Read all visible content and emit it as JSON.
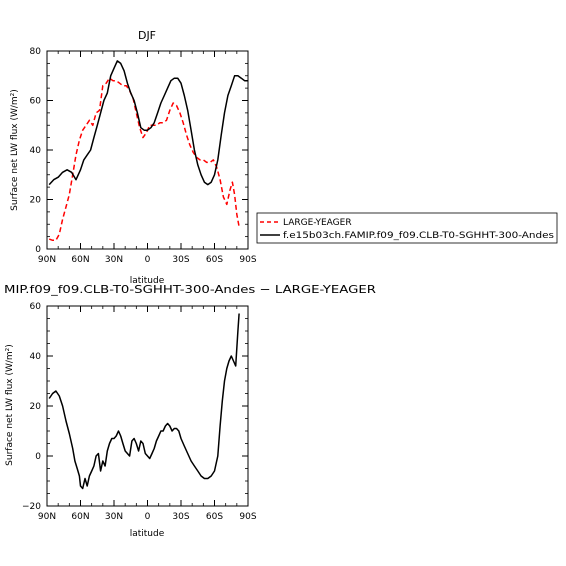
{
  "chart_data": [
    {
      "type": "line",
      "title": "DJF",
      "xlabel": "latitude",
      "ylabel": "Surface net LW flux (W/m²)",
      "xlim": [
        90,
        -90
      ],
      "ylim": [
        0,
        80
      ],
      "x_ticks": [
        90,
        60,
        30,
        0,
        -30,
        -60,
        -90
      ],
      "x_tick_labels": [
        "90N",
        "60N",
        "30N",
        "0",
        "30S",
        "60S",
        "90S"
      ],
      "y_ticks": [
        0,
        20,
        40,
        60,
        80
      ],
      "y_tick_labels": [
        "0",
        "20",
        "40",
        "60",
        "80"
      ],
      "grid": false,
      "legend_position": "right",
      "series": [
        {
          "name": "LARGE-YEAGER",
          "color": "#ff0000",
          "dash": "dashed",
          "x": [
            88,
            85,
            82,
            79,
            76,
            73,
            70,
            67,
            64,
            61,
            58,
            55,
            52,
            49,
            46,
            43,
            40,
            37,
            34,
            31,
            28,
            25,
            22,
            19,
            16,
            13,
            10,
            7,
            4,
            1,
            -2,
            -5,
            -8,
            -11,
            -14,
            -17,
            -20,
            -23,
            -26,
            -29,
            -32,
            -35,
            -38,
            -41,
            -44,
            -47,
            -50,
            -53,
            -56,
            -59,
            -62,
            -65,
            -68,
            -71,
            -74,
            -76,
            -78,
            -80,
            -82
          ],
          "y": [
            4,
            3.5,
            3.5,
            6,
            12,
            17,
            22,
            30,
            38,
            44,
            48,
            50,
            52,
            50,
            55,
            56,
            66,
            67,
            69,
            68,
            68,
            67,
            66,
            66,
            64,
            61,
            55,
            49,
            45,
            47,
            50,
            50,
            50,
            51,
            51,
            52,
            56,
            59,
            58,
            55,
            51,
            46,
            42,
            39,
            37,
            36,
            36,
            35,
            35,
            36,
            33,
            28,
            21,
            18,
            24,
            27,
            22,
            14,
            9
          ]
        },
        {
          "name": "f.e15b03ch.FAMIP.f09_f09.CLB-T0-SGHHT-300-Andes",
          "color": "#000000",
          "dash": "solid",
          "x": [
            88,
            84,
            80,
            76,
            72,
            68,
            64,
            60,
            57,
            54,
            51,
            48,
            45,
            42,
            39,
            36,
            33,
            30,
            27,
            24,
            21,
            18,
            15,
            12,
            9,
            6,
            3,
            0,
            -3,
            -6,
            -9,
            -12,
            -15,
            -18,
            -21,
            -24,
            -27,
            -30,
            -33,
            -36,
            -39,
            -42,
            -45,
            -48,
            -51,
            -54,
            -57,
            -60,
            -63,
            -66,
            -69,
            -72,
            -75,
            -78,
            -81,
            -84,
            -87,
            -90
          ],
          "y": [
            26,
            28,
            29,
            31,
            32,
            31,
            28,
            32,
            36,
            38,
            40,
            45,
            50,
            55,
            60,
            63,
            70,
            73,
            76,
            75,
            72,
            67,
            63,
            60,
            55,
            49,
            48,
            48,
            49,
            51,
            55,
            59,
            62,
            65,
            68,
            69,
            69,
            67,
            62,
            56,
            48,
            40,
            34,
            30,
            27,
            26,
            27,
            30,
            36,
            46,
            55,
            62,
            66,
            70,
            70,
            69,
            68,
            68
          ]
        }
      ]
    },
    {
      "type": "line",
      "title": "MIP.f09_f09.CLB-T0-SGHHT-300-Andes − LARGE-YEAGER",
      "xlabel": "latitude",
      "ylabel": "Surface net LW flux (W/m²)",
      "xlim": [
        90,
        -90
      ],
      "ylim": [
        -20,
        60
      ],
      "x_ticks": [
        90,
        60,
        30,
        0,
        -30,
        -60,
        -90
      ],
      "x_tick_labels": [
        "90N",
        "60N",
        "30N",
        "0",
        "30S",
        "60S",
        "90S"
      ],
      "y_ticks": [
        -20,
        0,
        20,
        40,
        60
      ],
      "y_tick_labels": [
        "−20",
        "0",
        "20",
        "40",
        "60"
      ],
      "grid": false,
      "series": [
        {
          "color": "#000000",
          "dash": "solid",
          "x": [
            88,
            85,
            82,
            79,
            76,
            73,
            70,
            67,
            65,
            63,
            61,
            60,
            58,
            56,
            54,
            52,
            50,
            48,
            46,
            44,
            42,
            40,
            38,
            36,
            34,
            32,
            30,
            28,
            26,
            24,
            22,
            20,
            18,
            16,
            14,
            12,
            10,
            8,
            6,
            4,
            2,
            0,
            -2,
            -4,
            -6,
            -8,
            -10,
            -12,
            -14,
            -16,
            -18,
            -20,
            -22,
            -24,
            -26,
            -28,
            -30,
            -33,
            -36,
            -39,
            -42,
            -45,
            -48,
            -51,
            -54,
            -57,
            -60,
            -63,
            -65,
            -67,
            -69,
            -71,
            -73,
            -75,
            -77,
            -79,
            -81,
            -82
          ],
          "y": [
            23,
            25,
            26,
            24,
            20,
            14,
            9,
            3,
            -2,
            -5,
            -8,
            -12,
            -13,
            -9,
            -12,
            -8,
            -6,
            -4,
            0,
            1,
            -6,
            -2,
            -4,
            2,
            5,
            7,
            7,
            8,
            10,
            8,
            5,
            2,
            1,
            0,
            6,
            7,
            5,
            2,
            6,
            5,
            1,
            0,
            -1,
            1,
            3,
            6,
            8,
            10,
            10,
            12,
            13,
            12,
            10,
            11,
            11,
            10,
            7,
            4,
            1,
            -2,
            -4,
            -6,
            -8,
            -9,
            -9,
            -8,
            -6,
            0,
            12,
            22,
            30,
            35,
            38,
            40,
            38,
            36,
            50,
            57
          ]
        }
      ]
    }
  ]
}
